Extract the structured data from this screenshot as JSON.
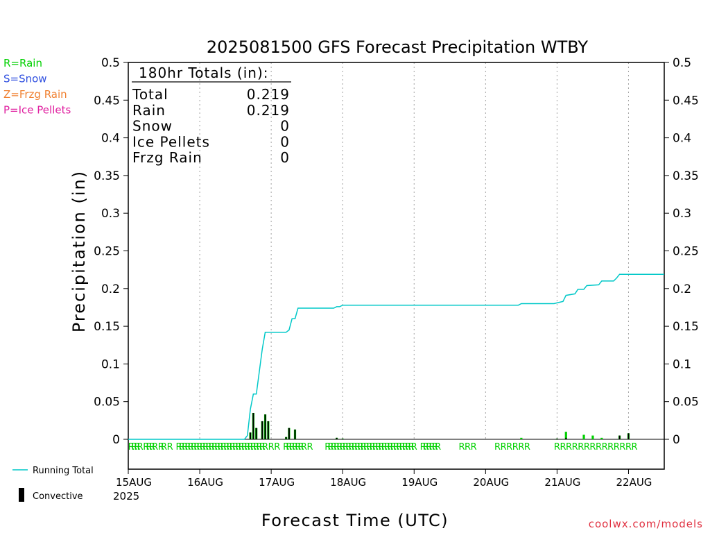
{
  "chart_data": {
    "type": "line",
    "title": "2025081500 GFS Forecast Precipitation WTBY",
    "xlabel": "Forecast Time (UTC)",
    "ylabel": "Precipitation (in)",
    "ylim": [
      0,
      0.5
    ],
    "xlim_hours": [
      0,
      180
    ],
    "yticks": [
      "0",
      "0.05",
      "0.1",
      "0.15",
      "0.2",
      "0.25",
      "0.3",
      "0.35",
      "0.4",
      "0.45",
      "0.5"
    ],
    "xticks": [
      {
        "hour": 0,
        "label": "15AUG"
      },
      {
        "hour": 24,
        "label": "16AUG"
      },
      {
        "hour": 48,
        "label": "17AUG"
      },
      {
        "hour": 72,
        "label": "18AUG"
      },
      {
        "hour": 96,
        "label": "19AUG"
      },
      {
        "hour": 120,
        "label": "20AUG"
      },
      {
        "hour": 144,
        "label": "21AUG"
      },
      {
        "hour": 168,
        "label": "22AUG"
      }
    ],
    "year_label": "2025",
    "grid": "vertical dotted at day boundaries",
    "legend_left": [
      {
        "label": "R=Rain",
        "color": "#00d000"
      },
      {
        "label": "S=Snow",
        "color": "#3050e0"
      },
      {
        "label": "Z=Frzg Rain",
        "color": "#f08030"
      },
      {
        "label": "P=Ice Pellets",
        "color": "#e020a0"
      }
    ],
    "legend_bottom": [
      {
        "label": "Running Total",
        "color": "#00c8c8"
      },
      {
        "label": "Convective",
        "color": "#000000"
      }
    ],
    "totals_box": {
      "header": "180hr Totals (in):",
      "rows": [
        {
          "label": "Total",
          "value": "0.219"
        },
        {
          "label": "Rain",
          "value": "0.219"
        },
        {
          "label": "Snow",
          "value": "0"
        },
        {
          "label": "Ice Pellets",
          "value": "0"
        },
        {
          "label": "Frzg Rain",
          "value": "0"
        }
      ]
    },
    "running_total": {
      "name": "Running Total",
      "points": [
        [
          0,
          0
        ],
        [
          39,
          0
        ],
        [
          40,
          0.005
        ],
        [
          41,
          0.04
        ],
        [
          42,
          0.06
        ],
        [
          43,
          0.06
        ],
        [
          44,
          0.09
        ],
        [
          45,
          0.12
        ],
        [
          46,
          0.142
        ],
        [
          53,
          0.142
        ],
        [
          54,
          0.145
        ],
        [
          55,
          0.16
        ],
        [
          56,
          0.16
        ],
        [
          57,
          0.174
        ],
        [
          69,
          0.174
        ],
        [
          70,
          0.176
        ],
        [
          71,
          0.176
        ],
        [
          72,
          0.178
        ],
        [
          131,
          0.178
        ],
        [
          132,
          0.18
        ],
        [
          143,
          0.18
        ],
        [
          144,
          0.181
        ],
        [
          146,
          0.183
        ],
        [
          147,
          0.191
        ],
        [
          150,
          0.193
        ],
        [
          151,
          0.199
        ],
        [
          153,
          0.199
        ],
        [
          154,
          0.204
        ],
        [
          158,
          0.205
        ],
        [
          159,
          0.21
        ],
        [
          163,
          0.21
        ],
        [
          164,
          0.214
        ],
        [
          165,
          0.219
        ],
        [
          180,
          0.219
        ]
      ]
    },
    "bars": [
      {
        "hour": 41,
        "total": 0.009,
        "conv": 0.009
      },
      {
        "hour": 42,
        "total": 0.035,
        "conv": 0.035
      },
      {
        "hour": 43,
        "total": 0.015,
        "conv": 0.015
      },
      {
        "hour": 44,
        "total": 0.0,
        "conv": 0.0
      },
      {
        "hour": 45,
        "total": 0.024,
        "conv": 0.024
      },
      {
        "hour": 46,
        "total": 0.033,
        "conv": 0.033
      },
      {
        "hour": 47,
        "total": 0.024,
        "conv": 0.024
      },
      {
        "hour": 53,
        "total": 0.003,
        "conv": 0.003
      },
      {
        "hour": 54,
        "total": 0.015,
        "conv": 0.015
      },
      {
        "hour": 56,
        "total": 0.013,
        "conv": 0.013
      },
      {
        "hour": 70,
        "total": 0.002,
        "conv": 0.002
      },
      {
        "hour": 72,
        "total": 0.001,
        "conv": 0.001
      },
      {
        "hour": 132,
        "total": 0.002,
        "conv": 0.0
      },
      {
        "hour": 144,
        "total": 0.001,
        "conv": 0.001
      },
      {
        "hour": 147,
        "total": 0.01,
        "conv": 0.002
      },
      {
        "hour": 153,
        "total": 0.006,
        "conv": 0.0
      },
      {
        "hour": 156,
        "total": 0.005,
        "conv": 0.0
      },
      {
        "hour": 159,
        "total": 0.002,
        "conv": 0.0
      },
      {
        "hour": 165,
        "total": 0.005,
        "conv": 0.005
      },
      {
        "hour": 168,
        "total": 0.008,
        "conv": 0.008
      }
    ],
    "ptype_hours": [
      1,
      2,
      3,
      4,
      6,
      7,
      8,
      9,
      11,
      12,
      14,
      17,
      18,
      19,
      20,
      21,
      22,
      23,
      24,
      25,
      26,
      27,
      28,
      29,
      30,
      31,
      32,
      33,
      34,
      35,
      36,
      37,
      38,
      39,
      40,
      41,
      42,
      43,
      44,
      45,
      46,
      48,
      50,
      53,
      54,
      55,
      56,
      57,
      58,
      59,
      61,
      67,
      68,
      69,
      70,
      71,
      72,
      73,
      74,
      75,
      76,
      77,
      78,
      79,
      80,
      81,
      82,
      83,
      84,
      85,
      86,
      87,
      88,
      89,
      90,
      91,
      92,
      93,
      94,
      95,
      96,
      99,
      100,
      101,
      102,
      103,
      104,
      112,
      114,
      116,
      124,
      126,
      128,
      130,
      132,
      134,
      144,
      146,
      148,
      150,
      152,
      154,
      156,
      158,
      160,
      162,
      164,
      166,
      168,
      170
    ],
    "ptype_label": "R"
  },
  "colors": {
    "axis": "#000000",
    "running_total": "#00c8c8",
    "rain": "#00d000",
    "convective": "#000000",
    "grid": "#a0a0a0",
    "watermark": "#e03040"
  },
  "watermark": "coolwx.com/models"
}
